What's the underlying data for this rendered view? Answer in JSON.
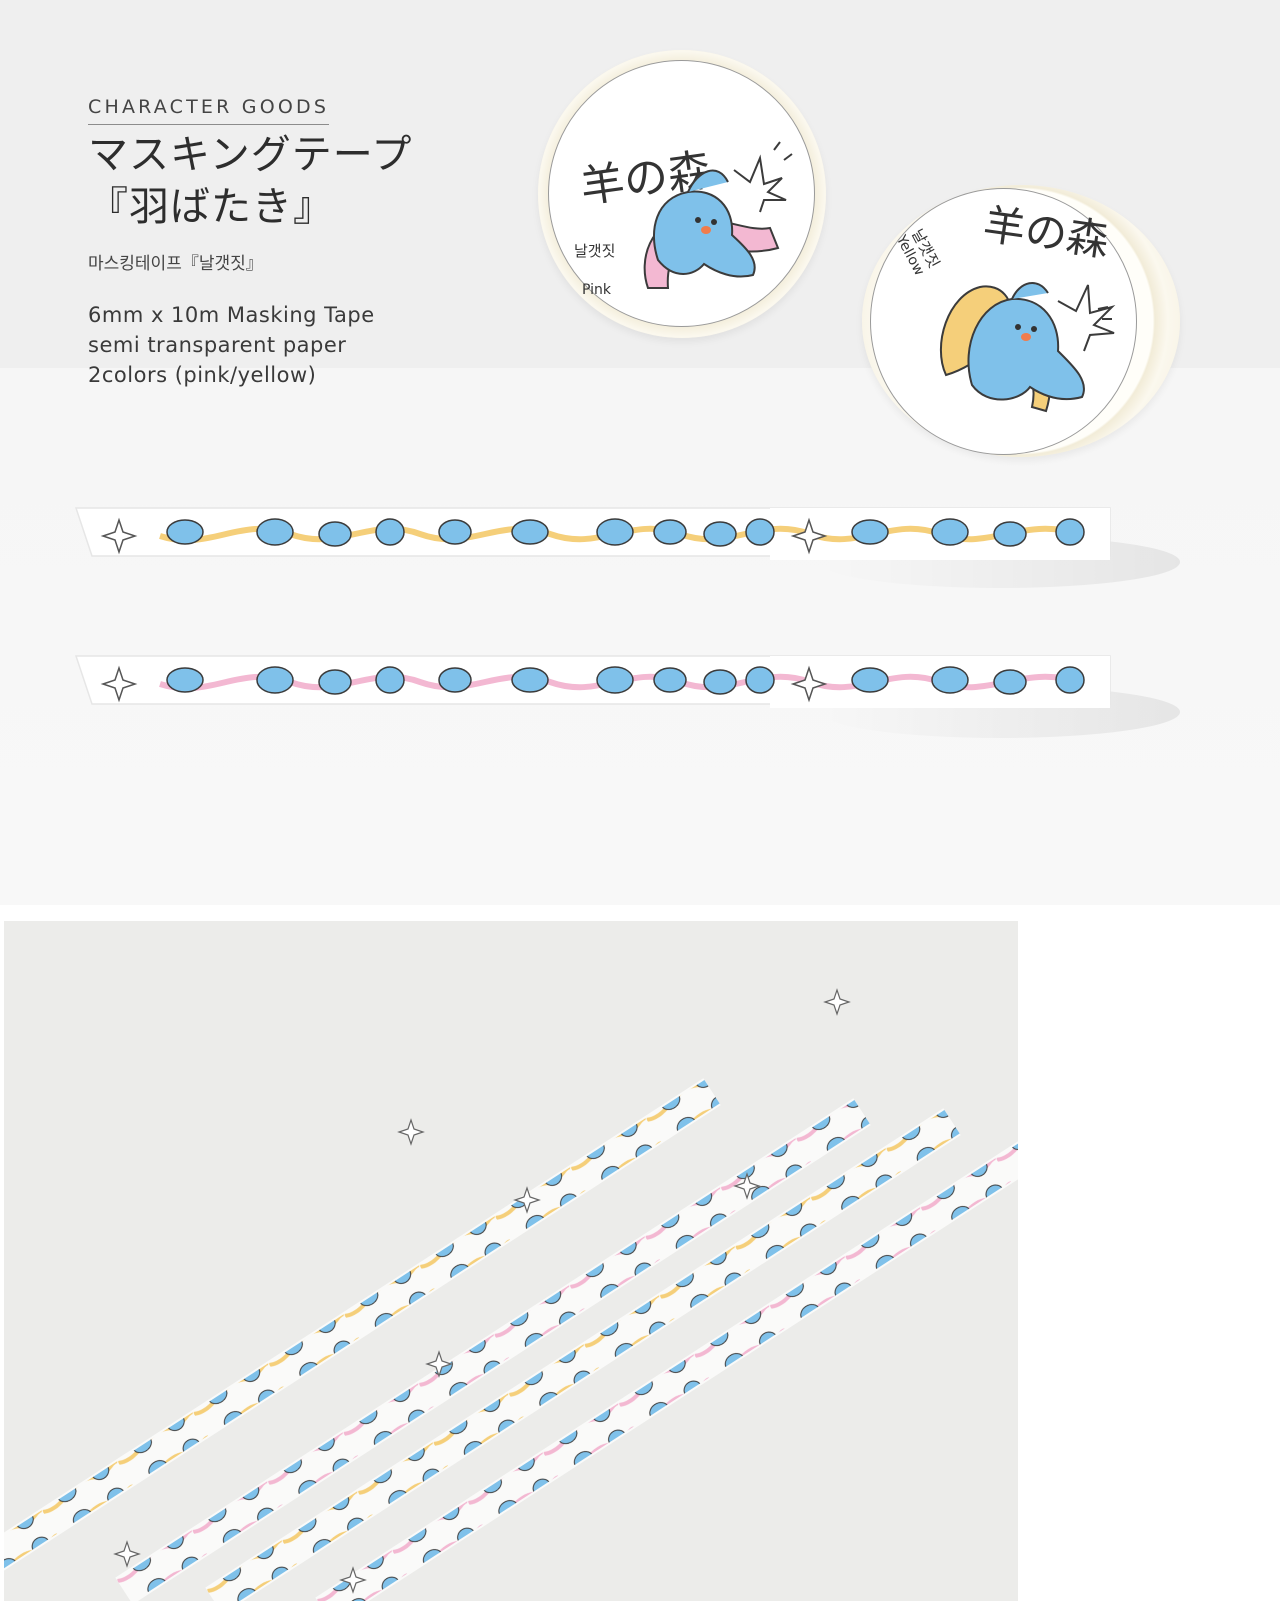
{
  "header": {
    "eyebrow": "CHARACTER GOODS",
    "title_line1": "マスキングテープ",
    "title_line2": "『羽ばたき』",
    "korean_title": "마스킹테이프『날갯짓』",
    "specs": [
      "6mm x 10m Masking Tape",
      "semi transparent paper",
      "2colors (pink/yellow)"
    ]
  },
  "rolls": [
    {
      "brand": "羊の森",
      "korean": "날갯짓",
      "color_label": "Pink",
      "ribbon_color": "#f3b8d2"
    },
    {
      "brand": "羊の森",
      "korean": "날갯짓",
      "color_label": "Yellow",
      "ribbon_color": "#f5cf7a"
    }
  ],
  "colors": {
    "bird": "#7fc1ea",
    "outline": "#3b3b3b",
    "pink": "#f3b8d2",
    "yellow": "#f5cf7a",
    "background": "#efefef",
    "photo_background": "#ececea"
  },
  "tapes": [
    {
      "variant": "yellow"
    },
    {
      "variant": "pink"
    }
  ]
}
